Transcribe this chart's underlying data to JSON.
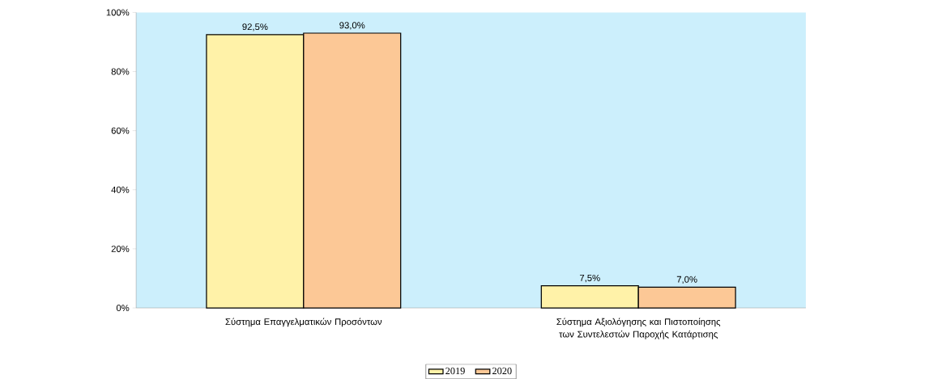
{
  "chart_data": {
    "type": "bar",
    "categories": [
      "Σύστημα Επαγγελματικών Προσόντων",
      "Σύστημα Αξιολόγησης και Πιστοποίησης των Συντελεστών Παροχής Κατάρτισης"
    ],
    "series": [
      {
        "name": "2019",
        "color": "#fff2a8",
        "values": [
          92.5,
          7.5
        ],
        "value_labels": [
          "92,5%",
          "7,5%"
        ]
      },
      {
        "name": "2020",
        "color": "#fcc896",
        "values": [
          93.0,
          7.0
        ],
        "value_labels": [
          "93,0%",
          "7,0%"
        ]
      }
    ],
    "ylim": [
      0,
      100
    ],
    "yticks": [
      {
        "value": 0,
        "label": "0%"
      },
      {
        "value": 20,
        "label": "20%"
      },
      {
        "value": 40,
        "label": "40%"
      },
      {
        "value": 60,
        "label": "60%"
      },
      {
        "value": 80,
        "label": "80%"
      },
      {
        "value": 100,
        "label": "100%"
      }
    ],
    "grid": false,
    "legend": "bottom"
  }
}
